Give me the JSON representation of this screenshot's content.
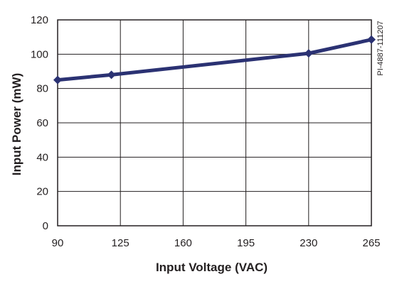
{
  "chart_data": {
    "type": "line",
    "title": "",
    "xlabel": "Input Voltage (VAC)",
    "ylabel": "Input Power (mW)",
    "figure_id": "PI-4887-111207",
    "xlim": [
      90,
      265
    ],
    "ylim": [
      0,
      120
    ],
    "x_ticks": [
      "90",
      "125",
      "160",
      "195",
      "230",
      "265"
    ],
    "y_ticks": [
      "0",
      "20",
      "40",
      "60",
      "80",
      "100",
      "120"
    ],
    "x_tick_values": [
      90,
      125,
      160,
      195,
      230,
      265
    ],
    "y_tick_values": [
      0,
      20,
      40,
      60,
      80,
      100,
      120
    ],
    "grid": true,
    "legend": "none",
    "line_color": "#2b3273",
    "series": [
      {
        "x": [
          90,
          120,
          230,
          265
        ],
        "y": [
          85,
          88,
          100.5,
          108.5
        ]
      }
    ]
  }
}
